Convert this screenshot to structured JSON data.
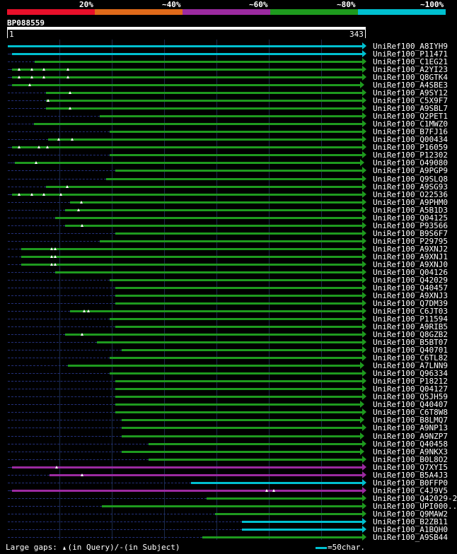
{
  "identity_legend": [
    {
      "label": "20%",
      "color": "#e8102a"
    },
    {
      "label": "~40%",
      "color": "#e06a1a"
    },
    {
      "label": "~60%",
      "color": "#9b2aa0"
    },
    {
      "label": "~80%",
      "color": "#1e9a1e"
    },
    {
      "label": "~100%",
      "color": "#00c0d0"
    }
  ],
  "query": {
    "id": "BP088559",
    "start": "1",
    "end": "343"
  },
  "footer": {
    "gaps_prefix": "Large gaps:",
    "gaps_query": "(in Query)/",
    "gaps_subject": "-(in Subject)",
    "scale_text": "=50char."
  },
  "hits": [
    {
      "name": "UniRef100_A8IYH9",
      "s": 1,
      "e": 343,
      "c": "cyan",
      "gaps": []
    },
    {
      "name": "UniRef100_P11471",
      "s": 5,
      "e": 343,
      "c": "cyan",
      "gaps": []
    },
    {
      "name": "UniRef100_C1EG21",
      "s": 27,
      "e": 343,
      "c": "green",
      "gaps": []
    },
    {
      "name": "UniRef100_A2YI23",
      "s": 5,
      "e": 343,
      "c": "green",
      "gaps": [
        12,
        24,
        36,
        59
      ]
    },
    {
      "name": "UniRef100_Q8GTK4",
      "s": 5,
      "e": 343,
      "c": "green",
      "gaps": [
        12,
        24,
        36,
        59
      ]
    },
    {
      "name": "UniRef100_A4SBE3",
      "s": 5,
      "e": 341,
      "c": "green",
      "gaps": [
        22
      ]
    },
    {
      "name": "UniRef100_A9SY12",
      "s": 38,
      "e": 343,
      "c": "green",
      "gaps": [
        61
      ]
    },
    {
      "name": "UniRef100_C5X9F7",
      "s": 38,
      "e": 343,
      "c": "green",
      "gaps": [
        40
      ]
    },
    {
      "name": "UniRef100_A9SBL7",
      "s": 38,
      "e": 343,
      "c": "green",
      "gaps": [
        61
      ]
    },
    {
      "name": "UniRef100_Q2PET1",
      "s": 90,
      "e": 343,
      "c": "green",
      "gaps": []
    },
    {
      "name": "UniRef100_C1MWZ0",
      "s": 26,
      "e": 343,
      "c": "green",
      "gaps": []
    },
    {
      "name": "UniRef100_B7FJ16",
      "s": 99,
      "e": 343,
      "c": "green",
      "gaps": []
    },
    {
      "name": "UniRef100_Q00434",
      "s": 40,
      "e": 343,
      "c": "green",
      "gaps": [
        50,
        63
      ]
    },
    {
      "name": "UniRef100_P16059",
      "s": 5,
      "e": 343,
      "c": "green",
      "gaps": [
        12,
        31,
        39
      ]
    },
    {
      "name": "UniRef100_P12302",
      "s": 99,
      "e": 343,
      "c": "green",
      "gaps": []
    },
    {
      "name": "UniRef100_O49080",
      "s": 8,
      "e": 341,
      "c": "green",
      "gaps": [
        28
      ]
    },
    {
      "name": "UniRef100_A9PGP9",
      "s": 105,
      "e": 343,
      "c": "green",
      "gaps": []
    },
    {
      "name": "UniRef100_Q9SLQ8",
      "s": 96,
      "e": 343,
      "c": "green",
      "gaps": []
    },
    {
      "name": "UniRef100_A9SG93",
      "s": 38,
      "e": 343,
      "c": "green",
      "gaps": [
        58
      ]
    },
    {
      "name": "UniRef100_O22536",
      "s": 5,
      "e": 343,
      "c": "green",
      "gaps": [
        12,
        24,
        36,
        52
      ]
    },
    {
      "name": "UniRef100_A9PHM0",
      "s": 61,
      "e": 343,
      "c": "green",
      "gaps": [
        72
      ]
    },
    {
      "name": "UniRef100_A5B1D3",
      "s": 56,
      "e": 343,
      "c": "green",
      "gaps": [
        69
      ]
    },
    {
      "name": "UniRef100_Q04125",
      "s": 47,
      "e": 343,
      "c": "green",
      "gaps": []
    },
    {
      "name": "UniRef100_P93566",
      "s": 56,
      "e": 343,
      "c": "green",
      "gaps": [
        73
      ]
    },
    {
      "name": "UniRef100_B9S6F7",
      "s": 105,
      "e": 343,
      "c": "green",
      "gaps": []
    },
    {
      "name": "UniRef100_P29795",
      "s": 90,
      "e": 343,
      "c": "green",
      "gaps": []
    },
    {
      "name": "UniRef100_A9XNJ2",
      "s": 14,
      "e": 343,
      "c": "green",
      "gaps": [
        43,
        47
      ]
    },
    {
      "name": "UniRef100_A9XNJ1",
      "s": 14,
      "e": 343,
      "c": "green",
      "gaps": [
        43,
        47
      ]
    },
    {
      "name": "UniRef100_A9XNJ0",
      "s": 14,
      "e": 343,
      "c": "green",
      "gaps": [
        43,
        47
      ]
    },
    {
      "name": "UniRef100_Q04126",
      "s": 47,
      "e": 343,
      "c": "green",
      "gaps": []
    },
    {
      "name": "UniRef100_Q42029",
      "s": 99,
      "e": 343,
      "c": "green",
      "gaps": []
    },
    {
      "name": "UniRef100_Q40457",
      "s": 105,
      "e": 343,
      "c": "green",
      "gaps": []
    },
    {
      "name": "UniRef100_A9XNJ3",
      "s": 105,
      "e": 343,
      "c": "green",
      "gaps": []
    },
    {
      "name": "UniRef100_Q7DM39",
      "s": 105,
      "e": 343,
      "c": "green",
      "gaps": []
    },
    {
      "name": "UniRef100_C6JT03",
      "s": 61,
      "e": 343,
      "c": "green",
      "gaps": [
        75,
        79
      ]
    },
    {
      "name": "UniRef100_P11594",
      "s": 99,
      "e": 343,
      "c": "green",
      "gaps": []
    },
    {
      "name": "UniRef100_A9RIB5",
      "s": 105,
      "e": 343,
      "c": "green",
      "gaps": []
    },
    {
      "name": "UniRef100_Q8GZB2",
      "s": 56,
      "e": 343,
      "c": "green",
      "gaps": [
        73
      ]
    },
    {
      "name": "UniRef100_B5BT07",
      "s": 87,
      "e": 343,
      "c": "green",
      "gaps": []
    },
    {
      "name": "UniRef100_Q40701",
      "s": 111,
      "e": 343,
      "c": "green",
      "gaps": []
    },
    {
      "name": "UniRef100_C6TL82",
      "s": 99,
      "e": 343,
      "c": "green",
      "gaps": []
    },
    {
      "name": "UniRef100_A7LNN9",
      "s": 59,
      "e": 341,
      "c": "green",
      "gaps": []
    },
    {
      "name": "UniRef100_Q96334",
      "s": 99,
      "e": 343,
      "c": "green",
      "gaps": []
    },
    {
      "name": "UniRef100_P18212",
      "s": 105,
      "e": 343,
      "c": "green",
      "gaps": []
    },
    {
      "name": "UniRef100_Q04127",
      "s": 105,
      "e": 343,
      "c": "green",
      "gaps": []
    },
    {
      "name": "UniRef100_Q5JH59",
      "s": 105,
      "e": 343,
      "c": "green",
      "gaps": []
    },
    {
      "name": "UniRef100_Q40407",
      "s": 105,
      "e": 341,
      "c": "green",
      "gaps": []
    },
    {
      "name": "UniRef100_C6T8W8",
      "s": 105,
      "e": 343,
      "c": "green",
      "gaps": []
    },
    {
      "name": "UniRef100_B8LMQ7",
      "s": 111,
      "e": 341,
      "c": "green",
      "gaps": []
    },
    {
      "name": "UniRef100_A9NP13",
      "s": 111,
      "e": 343,
      "c": "green",
      "gaps": []
    },
    {
      "name": "UniRef100_A9NZP7",
      "s": 111,
      "e": 341,
      "c": "green",
      "gaps": []
    },
    {
      "name": "UniRef100_Q40458",
      "s": 137,
      "e": 343,
      "c": "green",
      "gaps": []
    },
    {
      "name": "UniRef100_A9NKX3",
      "s": 111,
      "e": 341,
      "c": "green",
      "gaps": []
    },
    {
      "name": "UniRef100_B0L8O2",
      "s": 137,
      "e": 343,
      "c": "green",
      "gaps": []
    },
    {
      "name": "UniRef100_Q7XYI5",
      "s": 5,
      "e": 343,
      "c": "purple",
      "gaps": [
        48
      ]
    },
    {
      "name": "UniRef100_B5A4J3",
      "s": 41,
      "e": 343,
      "c": "purple",
      "gaps": [
        73
      ]
    },
    {
      "name": "UniRef100_B0FFP0",
      "s": 178,
      "e": 343,
      "c": "cyan",
      "gaps": []
    },
    {
      "name": "UniRef100_C4J9V5",
      "s": 5,
      "e": 343,
      "c": "purple",
      "gaps": [
        251,
        258
      ]
    },
    {
      "name": "UniRef100_Q42029-2",
      "s": 193,
      "e": 343,
      "c": "green",
      "gaps": []
    },
    {
      "name": "UniRef100_UPI000..",
      "s": 92,
      "e": 343,
      "c": "green",
      "gaps": []
    },
    {
      "name": "UniRef100_Q9MAW2",
      "s": 201,
      "e": 343,
      "c": "green",
      "gaps": []
    },
    {
      "name": "UniRef100_B2ZB11",
      "s": 227,
      "e": 343,
      "c": "cyan",
      "gaps": []
    },
    {
      "name": "UniRef100_A1BQH0",
      "s": 227,
      "e": 343,
      "c": "cyan",
      "gaps": []
    },
    {
      "name": "UniRef100_A9SB44",
      "s": 189,
      "e": 343,
      "c": "green",
      "gaps": []
    }
  ],
  "colors": {
    "green": "#1e9a1e",
    "cyan": "#00c0d0",
    "purple": "#9b2aa0",
    "query": "#ffffff",
    "background": "#000000"
  }
}
